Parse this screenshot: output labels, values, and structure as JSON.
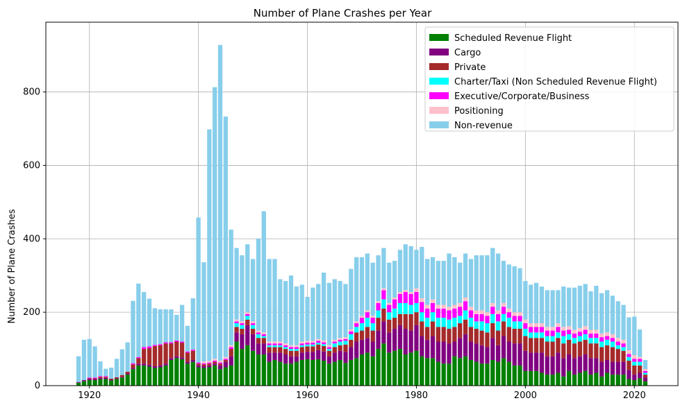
{
  "chart_data": {
    "type": "bar",
    "stacked": true,
    "title": "Number of Plane Crashes per Year",
    "xlabel": "",
    "ylabel": "Number of Plane Crashes",
    "xlim": [
      1912,
      2028
    ],
    "ylim": [
      0,
      990
    ],
    "xticks": [
      1920,
      1940,
      1960,
      1980,
      2000,
      2020
    ],
    "yticks": [
      0,
      200,
      400,
      600,
      800
    ],
    "grid": true,
    "legend_position": "top-right",
    "years": [
      1918,
      1919,
      1920,
      1921,
      1922,
      1923,
      1924,
      1925,
      1926,
      1927,
      1928,
      1929,
      1930,
      1931,
      1932,
      1933,
      1934,
      1935,
      1936,
      1937,
      1938,
      1939,
      1940,
      1941,
      1942,
      1943,
      1944,
      1945,
      1946,
      1947,
      1948,
      1949,
      1950,
      1951,
      1952,
      1953,
      1954,
      1955,
      1956,
      1957,
      1958,
      1959,
      1960,
      1961,
      1962,
      1963,
      1964,
      1965,
      1966,
      1967,
      1968,
      1969,
      1970,
      1971,
      1972,
      1973,
      1974,
      1975,
      1976,
      1977,
      1978,
      1979,
      1980,
      1981,
      1982,
      1983,
      1984,
      1985,
      1986,
      1987,
      1988,
      1989,
      1990,
      1991,
      1992,
      1993,
      1994,
      1995,
      1996,
      1997,
      1998,
      1999,
      2000,
      2001,
      2002,
      2003,
      2004,
      2005,
      2006,
      2007,
      2008,
      2009,
      2010,
      2011,
      2012,
      2013,
      2014,
      2015,
      2016,
      2017,
      2018,
      2019,
      2020,
      2021,
      2022
    ],
    "series": [
      {
        "name": "Scheduled Revenue Flight",
        "color": "#008000",
        "values": [
          8,
          12,
          15,
          15,
          18,
          18,
          14,
          18,
          22,
          30,
          45,
          55,
          55,
          52,
          48,
          50,
          55,
          70,
          75,
          72,
          60,
          65,
          50,
          48,
          50,
          55,
          45,
          50,
          55,
          120,
          100,
          110,
          95,
          85,
          85,
          65,
          70,
          65,
          60,
          60,
          65,
          70,
          72,
          70,
          72,
          68,
          60,
          65,
          70,
          62,
          70,
          75,
          85,
          90,
          80,
          100,
          115,
          90,
          95,
          100,
          85,
          90,
          95,
          80,
          75,
          75,
          65,
          60,
          60,
          80,
          75,
          80,
          70,
          65,
          60,
          60,
          70,
          65,
          75,
          65,
          55,
          55,
          40,
          40,
          40,
          35,
          30,
          30,
          35,
          25,
          40,
          30,
          35,
          40,
          30,
          35,
          25,
          35,
          30,
          30,
          30,
          18,
          15,
          20,
          12
        ]
      },
      {
        "name": "Cargo",
        "color": "#800080",
        "values": [
          2,
          3,
          3,
          3,
          3,
          3,
          2,
          2,
          2,
          3,
          3,
          5,
          5,
          5,
          5,
          5,
          5,
          5,
          5,
          5,
          5,
          5,
          5,
          5,
          5,
          5,
          10,
          15,
          25,
          25,
          40,
          55,
          45,
          30,
          30,
          25,
          20,
          25,
          25,
          20,
          15,
          20,
          20,
          22,
          25,
          25,
          20,
          25,
          25,
          30,
          35,
          45,
          40,
          40,
          40,
          50,
          60,
          55,
          60,
          65,
          70,
          60,
          70,
          55,
          50,
          60,
          55,
          60,
          55,
          40,
          55,
          60,
          50,
          50,
          50,
          45,
          60,
          45,
          60,
          55,
          60,
          60,
          55,
          50,
          50,
          55,
          50,
          50,
          55,
          50,
          45,
          45,
          45,
          45,
          45,
          40,
          40,
          35,
          35,
          35,
          35,
          25,
          15,
          15,
          10
        ]
      },
      {
        "name": "Private",
        "color": "#a52a2a",
        "values": [
          0,
          0,
          2,
          2,
          3,
          3,
          3,
          3,
          5,
          5,
          10,
          15,
          40,
          45,
          55,
          55,
          55,
          40,
          40,
          40,
          25,
          25,
          5,
          5,
          5,
          5,
          5,
          5,
          20,
          15,
          15,
          15,
          15,
          15,
          15,
          15,
          15,
          15,
          15,
          15,
          15,
          15,
          15,
          15,
          15,
          15,
          15,
          15,
          15,
          20,
          20,
          25,
          25,
          30,
          30,
          35,
          35,
          35,
          30,
          30,
          40,
          45,
          35,
          40,
          35,
          40,
          40,
          40,
          40,
          40,
          40,
          40,
          40,
          40,
          40,
          40,
          40,
          40,
          40,
          40,
          40,
          40,
          40,
          40,
          40,
          40,
          40,
          40,
          40,
          40,
          40,
          40,
          40,
          40,
          40,
          40,
          40,
          40,
          40,
          35,
          30,
          25,
          25,
          20,
          8
        ]
      },
      {
        "name": "Charter/Taxi (Non Scheduled Revenue Flight)",
        "color": "#00ffff",
        "values": [
          0,
          0,
          0,
          0,
          0,
          0,
          0,
          0,
          0,
          0,
          0,
          0,
          0,
          0,
          0,
          0,
          0,
          0,
          0,
          0,
          0,
          0,
          0,
          0,
          0,
          0,
          0,
          0,
          0,
          10,
          10,
          10,
          10,
          10,
          5,
          5,
          5,
          5,
          5,
          5,
          5,
          5,
          5,
          5,
          5,
          5,
          5,
          10,
          10,
          10,
          15,
          15,
          20,
          25,
          20,
          20,
          25,
          20,
          25,
          30,
          30,
          25,
          25,
          25,
          25,
          25,
          25,
          25,
          25,
          25,
          20,
          25,
          25,
          20,
          25,
          25,
          25,
          25,
          20,
          25,
          20,
          20,
          20,
          15,
          15,
          15,
          15,
          15,
          15,
          20,
          15,
          15,
          15,
          15,
          15,
          15,
          15,
          15,
          15,
          10,
          10,
          10,
          10,
          10,
          5
        ]
      },
      {
        "name": "Executive/Corporate/Business",
        "color": "#ff00ff",
        "values": [
          0,
          0,
          2,
          2,
          2,
          2,
          0,
          0,
          0,
          0,
          3,
          3,
          5,
          5,
          3,
          3,
          3,
          3,
          3,
          3,
          3,
          3,
          3,
          3,
          3,
          3,
          3,
          3,
          5,
          5,
          5,
          5,
          5,
          5,
          5,
          5,
          5,
          5,
          5,
          5,
          5,
          5,
          5,
          5,
          5,
          5,
          5,
          5,
          5,
          5,
          8,
          10,
          15,
          15,
          15,
          20,
          25,
          20,
          25,
          25,
          30,
          30,
          30,
          28,
          25,
          25,
          25,
          25,
          25,
          25,
          25,
          25,
          20,
          20,
          20,
          20,
          20,
          20,
          20,
          15,
          15,
          15,
          15,
          15,
          15,
          15,
          15,
          15,
          15,
          15,
          12,
          12,
          12,
          12,
          12,
          12,
          12,
          10,
          10,
          10,
          10,
          8,
          8,
          8,
          5
        ]
      },
      {
        "name": "Positioning",
        "color": "#ffc0cb",
        "values": [
          0,
          0,
          0,
          0,
          0,
          0,
          0,
          0,
          0,
          0,
          0,
          0,
          0,
          0,
          0,
          0,
          0,
          0,
          0,
          0,
          0,
          0,
          0,
          5,
          5,
          5,
          5,
          5,
          5,
          5,
          5,
          5,
          5,
          5,
          5,
          5,
          5,
          5,
          5,
          5,
          5,
          5,
          5,
          5,
          5,
          5,
          5,
          5,
          5,
          5,
          5,
          5,
          5,
          5,
          5,
          5,
          5,
          5,
          5,
          5,
          5,
          5,
          10,
          10,
          10,
          10,
          10,
          10,
          10,
          10,
          10,
          10,
          10,
          10,
          10,
          10,
          10,
          10,
          10,
          10,
          10,
          10,
          10,
          10,
          10,
          10,
          10,
          10,
          10,
          10,
          10,
          10,
          10,
          10,
          10,
          10,
          10,
          10,
          10,
          10,
          10,
          10,
          10,
          5,
          5
        ]
      },
      {
        "name": "Non-revenue",
        "color": "#87ceeb",
        "values": [
          70,
          110,
          105,
          85,
          40,
          20,
          30,
          50,
          70,
          80,
          170,
          200,
          150,
          130,
          100,
          95,
          90,
          90,
          70,
          100,
          70,
          140,
          395,
          270,
          630,
          740,
          860,
          655,
          315,
          195,
          180,
          185,
          170,
          250,
          330,
          225,
          225,
          170,
          170,
          190,
          160,
          155,
          120,
          145,
          150,
          185,
          170,
          165,
          155,
          145,
          165,
          175,
          160,
          155,
          145,
          125,
          110,
          110,
          100,
          115,
          125,
          125,
          105,
          140,
          125,
          115,
          120,
          120,
          145,
          130,
          110,
          120,
          130,
          150,
          150,
          155,
          150,
          155,
          115,
          120,
          125,
          120,
          105,
          105,
          110,
          100,
          100,
          100,
          90,
          110,
          105,
          115,
          115,
          115,
          105,
          120,
          110,
          115,
          105,
          100,
          95,
          90,
          105,
          75,
          25
        ]
      }
    ]
  }
}
